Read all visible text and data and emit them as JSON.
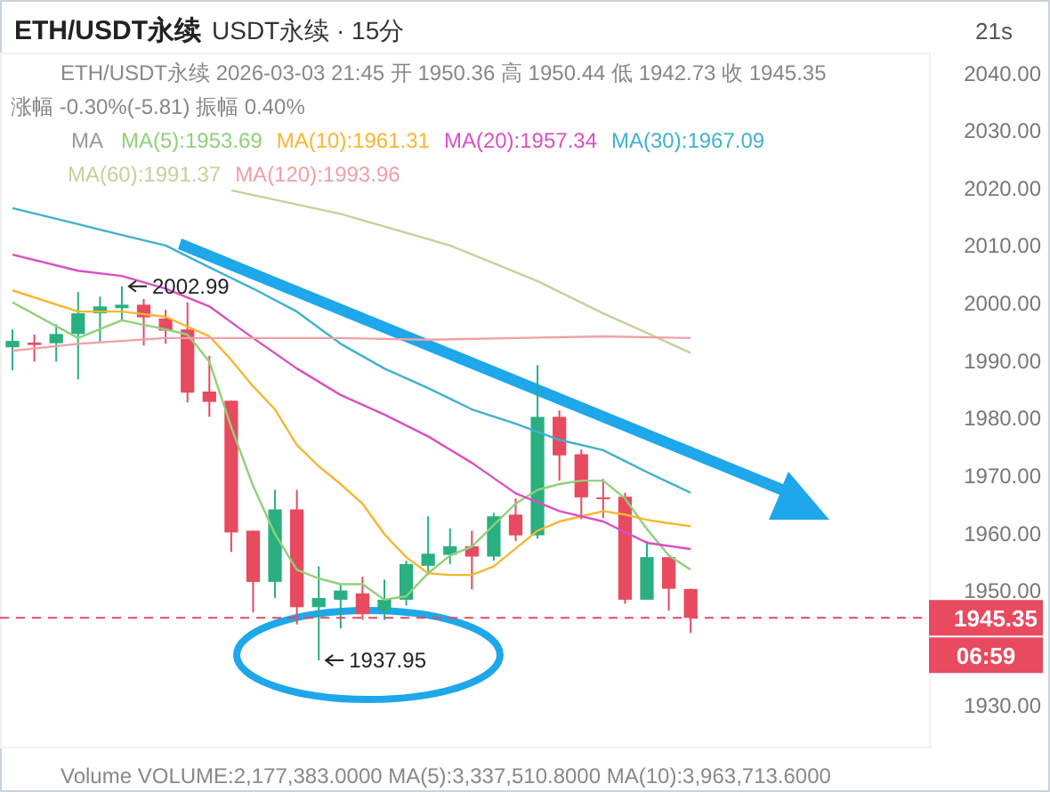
{
  "chart_data": {
    "type": "candlestick",
    "title": "ETH/USDT永续",
    "subtitle": "USDT永续 · 15分",
    "categories": [
      null,
      null,
      null,
      null,
      null,
      null,
      null,
      null,
      null,
      null,
      null,
      null,
      null,
      null,
      null,
      null,
      null,
      null,
      null,
      null,
      null,
      null,
      null,
      null,
      null,
      null,
      null,
      null,
      null,
      null,
      null,
      null
    ],
    "ohlc": [
      [
        1992.4,
        1995.5,
        1988.4,
        1993.5
      ],
      [
        1993.2,
        1994.6,
        1989.9,
        1992.8
      ],
      [
        1993.1,
        1996.4,
        1989.9,
        1994.7
      ],
      [
        1994.7,
        2002.0,
        1986.8,
        1998.3
      ],
      [
        1998.3,
        2001.2,
        1993.4,
        1999.5
      ],
      [
        1999.2,
        2002.99,
        1997.0,
        1999.8
      ],
      [
        1999.8,
        2000.8,
        1992.7,
        1997.6
      ],
      [
        1997.4,
        1998.9,
        1993.0,
        1995.3
      ],
      [
        1995.5,
        2000.2,
        1982.8,
        1984.5
      ],
      [
        1984.7,
        1990.9,
        1980.3,
        1982.9
      ],
      [
        1983.1,
        1983.1,
        1956.8,
        1960.2
      ],
      [
        1960.5,
        1960.5,
        1946.3,
        1951.6
      ],
      [
        1951.6,
        1967.6,
        1948.8,
        1964.2
      ],
      [
        1964.2,
        1967.6,
        1944.2,
        1947.2
      ],
      [
        1947.2,
        1954.3,
        1937.95,
        1948.8
      ],
      [
        1948.5,
        1951.2,
        1943.5,
        1950.1
      ],
      [
        1949.6,
        1952.5,
        1945.0,
        1946.0
      ],
      [
        1946.6,
        1952.0,
        1945.0,
        1948.5
      ],
      [
        1948.5,
        1955.3,
        1947.5,
        1954.7
      ],
      [
        1954.4,
        1963.0,
        1952.8,
        1956.5
      ],
      [
        1956.3,
        1960.9,
        1954.7,
        1957.8
      ],
      [
        1957.8,
        1960.5,
        1950.3,
        1956.0
      ],
      [
        1956.0,
        1963.6,
        1955.3,
        1963.0
      ],
      [
        1963.3,
        1966.1,
        1958.7,
        1959.7
      ],
      [
        1959.7,
        1989.3,
        1959.1,
        1980.3
      ],
      [
        1980.3,
        1981.4,
        1969.2,
        1973.6
      ],
      [
        1973.8,
        1974.6,
        1962.5,
        1966.3
      ],
      [
        1966.3,
        1969.5,
        1962.7,
        1966.0
      ],
      [
        1966.4,
        1967.1,
        1947.8,
        1948.5
      ],
      [
        1948.5,
        1958.7,
        1948.5,
        1955.9
      ],
      [
        1955.9,
        1955.9,
        1946.6,
        1950.4
      ],
      [
        1950.36,
        1950.44,
        1942.73,
        1945.35
      ]
    ],
    "colors": [
      "#2aaf80",
      "#e84a5f",
      "#2aaf80",
      "#2aaf80",
      "#2aaf80",
      "#2aaf80",
      "#e84a5f",
      "#e84a5f",
      "#e84a5f",
      "#e84a5f",
      "#e84a5f",
      "#e84a5f",
      "#2aaf80",
      "#e84a5f",
      "#2aaf80",
      "#2aaf80",
      "#e84a5f",
      "#2aaf80",
      "#2aaf80",
      "#2aaf80",
      "#2aaf80",
      "#e84a5f",
      "#2aaf80",
      "#e84a5f",
      "#2aaf80",
      "#e84a5f",
      "#e84a5f",
      "#e84a5f",
      "#e84a5f",
      "#2aaf80",
      "#e84a5f",
      "#e84a5f"
    ],
    "series": [
      {
        "type": "line",
        "name": "MA(5):1953.69",
        "color": "#8fd17a",
        "values": [
          2000.2,
          null,
          null,
          1994.0,
          null,
          1997.1,
          null,
          1995.5,
          1994.6,
          1989.9,
          1978.5,
          1968.3,
          1959.9,
          1953.7,
          1952.2,
          1951.2,
          1951.2,
          1948.5,
          1949.1,
          1953.1,
          1956.2,
          1957.7,
          1961.5,
          1965.2,
          1967.6,
          1968.6,
          1969.2,
          1969.2,
          1966.1,
          1960.8,
          1956.2,
          1953.7
        ]
      },
      {
        "type": "line",
        "name": "MA(10):1961.31",
        "color": "#f5b731",
        "values": [
          2002.3,
          null,
          null,
          1998.6,
          null,
          1998.6,
          null,
          1997.7,
          null,
          1994.3,
          1990.2,
          1985.6,
          1981.6,
          1975.4,
          1971.7,
          1968.6,
          1965.2,
          1959.9,
          1955.9,
          1953.1,
          1952.8,
          1952.8,
          1954.3,
          1957.4,
          1960.5,
          1962.1,
          1963.0,
          1963.9,
          1963.3,
          1962.4,
          1961.8,
          1961.3
        ]
      },
      {
        "type": "line",
        "name": "MA(20):1957.34",
        "color": "#d94fc4",
        "values": [
          2008.5,
          null,
          null,
          2005.7,
          null,
          2004.8,
          null,
          2002.6,
          null,
          1999.5,
          null,
          1994.0,
          null,
          1988.7,
          null,
          1984.1,
          null,
          1980.7,
          null,
          1976.9,
          null,
          1972.3,
          null,
          1967.0,
          null,
          1963.9,
          null,
          1962.1,
          null,
          1958.4,
          null,
          1957.3
        ]
      },
      {
        "type": "line",
        "name": "MA(30):1967.09",
        "color": "#3fb1cf",
        "values": [
          2016.6,
          null,
          null,
          2013.8,
          null,
          2011.9,
          null,
          2010.1,
          null,
          2006.3,
          null,
          2002.6,
          null,
          1998.6,
          null,
          1993.0,
          null,
          1988.7,
          null,
          1985.3,
          null,
          1981.6,
          null,
          1979.1,
          null,
          1976.3,
          null,
          1974.5,
          1972.6,
          1970.7,
          1968.9,
          1967.1
        ]
      },
      {
        "type": "line",
        "name": "MA(60):1991.37",
        "color": "#c6d19a",
        "values": [
          null,
          null,
          null,
          null,
          null,
          null,
          null,
          null,
          null,
          null,
          2019.7,
          null,
          null,
          null,
          null,
          2015.6,
          null,
          null,
          null,
          null,
          2010.1,
          null,
          null,
          null,
          2003.9,
          null,
          null,
          1998.3,
          null,
          1994.9,
          null,
          1991.4
        ]
      },
      {
        "type": "line",
        "name": "MA(120):1993.96",
        "color": "#f0a0a8",
        "values": [
          1991.8,
          null,
          null,
          1993.0,
          null,
          null,
          null,
          1994.0,
          null,
          null,
          null,
          1994.0,
          null,
          null,
          null,
          1994.0,
          null,
          null,
          null,
          1993.7,
          null,
          null,
          null,
          1994.0,
          null,
          null,
          null,
          1994.3,
          null,
          null,
          null,
          1994.0
        ]
      }
    ],
    "ylim": [
      1922.8,
      2043.5
    ],
    "yticks": [
      {
        "value": 1930,
        "label": "1930.00"
      },
      {
        "value": 1950,
        "label": "1950.00"
      },
      {
        "value": 1960,
        "label": "1960.00"
      },
      {
        "value": 1970,
        "label": "1970.00"
      },
      {
        "value": 1980,
        "label": "1980.00"
      },
      {
        "value": 1990,
        "label": "1990.00"
      },
      {
        "value": 2000,
        "label": "2000.00"
      },
      {
        "value": 2010,
        "label": "2010.00"
      },
      {
        "value": 2020,
        "label": "2020.00"
      },
      {
        "value": 2030,
        "label": "2030.00"
      },
      {
        "value": 2040,
        "label": "2040.00"
      }
    ],
    "ref_lines": [
      {
        "axis": "y",
        "value": 1945.35,
        "label": "1945.35",
        "color": "#e84a5f",
        "line_style": "dashed"
      }
    ],
    "legend": "top",
    "annotations": [
      "21s",
      "ETH/USDT永续 2026-03-03 21:45 开 1950.36 高 1950.44 低 1942.73 收 1945.35",
      "涨幅 -0.30%(-5.81) 振幅 0.40%",
      "MA",
      "06:59",
      "Volume VOLUME:2,177,383.0000 MA(5):3,337,510.8000 MA(10):3,963,713.6000",
      "2002.99",
      "1937.95"
    ]
  }
}
